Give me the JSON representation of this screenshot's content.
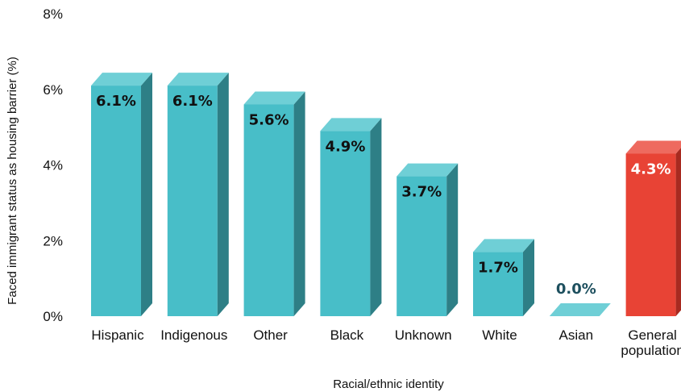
{
  "chart_data": {
    "type": "bar",
    "title": "",
    "xlabel": "Racial/ethnic identity",
    "ylabel": "Faced immigrant status as housing barrier (%)",
    "ylim": [
      0,
      8
    ],
    "yticks": [
      "0%",
      "2%",
      "4%",
      "6%",
      "8%"
    ],
    "grid": false,
    "categories": [
      [
        "Hispanic"
      ],
      [
        "Indigenous"
      ],
      [
        "Other"
      ],
      [
        "Black"
      ],
      [
        "Unknown"
      ],
      [
        "White"
      ],
      [
        "Asian"
      ],
      [
        "General",
        "population"
      ]
    ],
    "values": [
      6.1,
      6.1,
      5.6,
      4.9,
      3.7,
      1.7,
      0.0,
      4.3
    ],
    "value_labels": [
      "6.1%",
      "6.1%",
      "5.6%",
      "4.9%",
      "3.7%",
      "1.7%",
      "0.0%",
      "4.3%"
    ],
    "highlight_index": 7,
    "colors": {
      "bar_front": "#48bec8",
      "bar_top": "#6fcfd6",
      "bar_side": "#2e7f86",
      "highlight_front": "#e84335",
      "highlight_top": "#ee6a5f",
      "highlight_side": "#a82a20",
      "label_dark": "#111111",
      "label_zero": "#1d4f5e",
      "label_light": "#ffffff"
    }
  }
}
